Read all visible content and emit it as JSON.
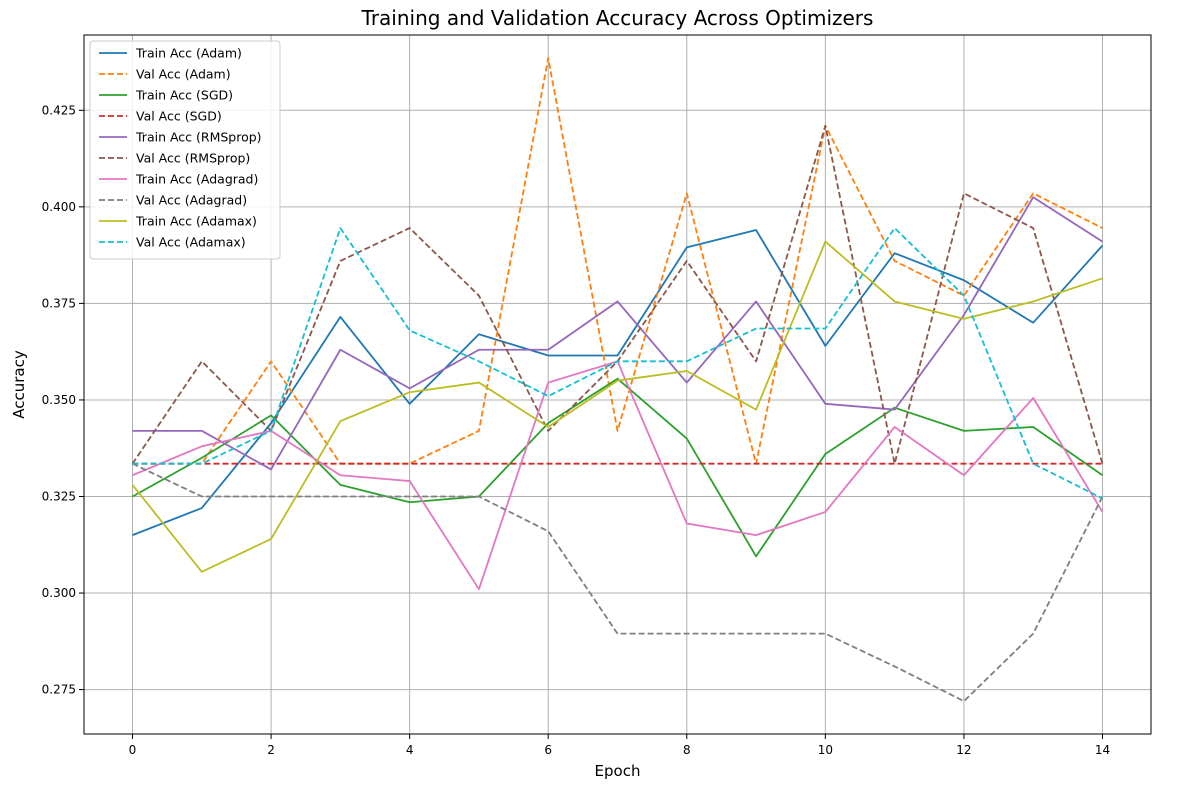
{
  "chart_data": {
    "type": "line",
    "title": "Training and Validation Accuracy Across Optimizers",
    "xlabel": "Epoch",
    "ylabel": "Accuracy",
    "xlim": [
      -0.7,
      14.7
    ],
    "ylim": [
      0.2635,
      0.4445
    ],
    "xticks": [
      0,
      2,
      4,
      6,
      8,
      10,
      12,
      14
    ],
    "yticks": [
      0.275,
      0.3,
      0.325,
      0.35,
      0.375,
      0.4,
      0.425
    ],
    "ytick_labels": [
      "0.275",
      "0.300",
      "0.325",
      "0.350",
      "0.375",
      "0.400",
      "0.425"
    ],
    "grid": true,
    "legend_position": "top-left",
    "x": [
      0,
      1,
      2,
      3,
      4,
      5,
      6,
      7,
      8,
      9,
      10,
      11,
      12,
      13,
      14
    ],
    "series": [
      {
        "name": "Train Acc (Adam)",
        "color": "#1f77b4",
        "style": "solid",
        "values": [
          0.315,
          0.322,
          0.344,
          0.3715,
          0.349,
          0.367,
          0.3615,
          0.3615,
          0.3895,
          0.394,
          0.364,
          0.388,
          0.381,
          0.37,
          0.39
        ]
      },
      {
        "name": "Val Acc (Adam)",
        "color": "#ff7f0e",
        "style": "dashed",
        "values": [
          0.3335,
          0.3335,
          0.36,
          0.3335,
          0.3335,
          0.342,
          0.4385,
          0.342,
          0.4035,
          0.3335,
          0.421,
          0.386,
          0.377,
          0.4035,
          0.3945
        ]
      },
      {
        "name": "Train Acc (SGD)",
        "color": "#2ca02c",
        "style": "solid",
        "values": [
          0.325,
          0.335,
          0.346,
          0.328,
          0.3235,
          0.325,
          0.344,
          0.3555,
          0.34,
          0.3095,
          0.336,
          0.348,
          0.342,
          0.343,
          0.3305
        ]
      },
      {
        "name": "Val Acc (SGD)",
        "color": "#d62728",
        "style": "dashed",
        "values": [
          0.3335,
          0.3335,
          0.3335,
          0.3335,
          0.3335,
          0.3335,
          0.3335,
          0.3335,
          0.3335,
          0.3335,
          0.3335,
          0.3335,
          0.3335,
          0.3335,
          0.3335
        ]
      },
      {
        "name": "Train Acc (RMSprop)",
        "color": "#9467bd",
        "style": "solid",
        "values": [
          0.342,
          0.342,
          0.332,
          0.363,
          0.353,
          0.363,
          0.363,
          0.3755,
          0.3545,
          0.3755,
          0.349,
          0.3475,
          0.372,
          0.4025,
          0.391
        ]
      },
      {
        "name": "Val Acc (RMSprop)",
        "color": "#8c564b",
        "style": "dashed",
        "values": [
          0.3335,
          0.36,
          0.342,
          0.386,
          0.3945,
          0.377,
          0.342,
          0.36,
          0.386,
          0.36,
          0.421,
          0.3335,
          0.4035,
          0.3945,
          0.3335
        ]
      },
      {
        "name": "Train Acc (Adagrad)",
        "color": "#e377c2",
        "style": "solid",
        "values": [
          0.3305,
          0.338,
          0.342,
          0.3305,
          0.329,
          0.301,
          0.3545,
          0.36,
          0.318,
          0.315,
          0.321,
          0.343,
          0.3305,
          0.3505,
          0.321
        ]
      },
      {
        "name": "Val Acc (Adagrad)",
        "color": "#7f7f7f",
        "style": "dashed",
        "values": [
          0.3335,
          0.325,
          0.325,
          0.325,
          0.325,
          0.325,
          0.316,
          0.2895,
          0.2895,
          0.2895,
          0.2895,
          0.281,
          0.272,
          0.2895,
          0.325
        ]
      },
      {
        "name": "Train Acc (Adamax)",
        "color": "#bcbd22",
        "style": "solid",
        "values": [
          0.328,
          0.3055,
          0.314,
          0.3445,
          0.352,
          0.3545,
          0.343,
          0.355,
          0.3575,
          0.3475,
          0.391,
          0.3755,
          0.371,
          0.3755,
          0.3815
        ]
      },
      {
        "name": "Val Acc (Adamax)",
        "color": "#17becf",
        "style": "dashed",
        "values": [
          0.3335,
          0.3335,
          0.342,
          0.3945,
          0.368,
          0.36,
          0.351,
          0.36,
          0.36,
          0.3685,
          0.3685,
          0.3945,
          0.377,
          0.3335,
          0.3245
        ]
      }
    ]
  }
}
